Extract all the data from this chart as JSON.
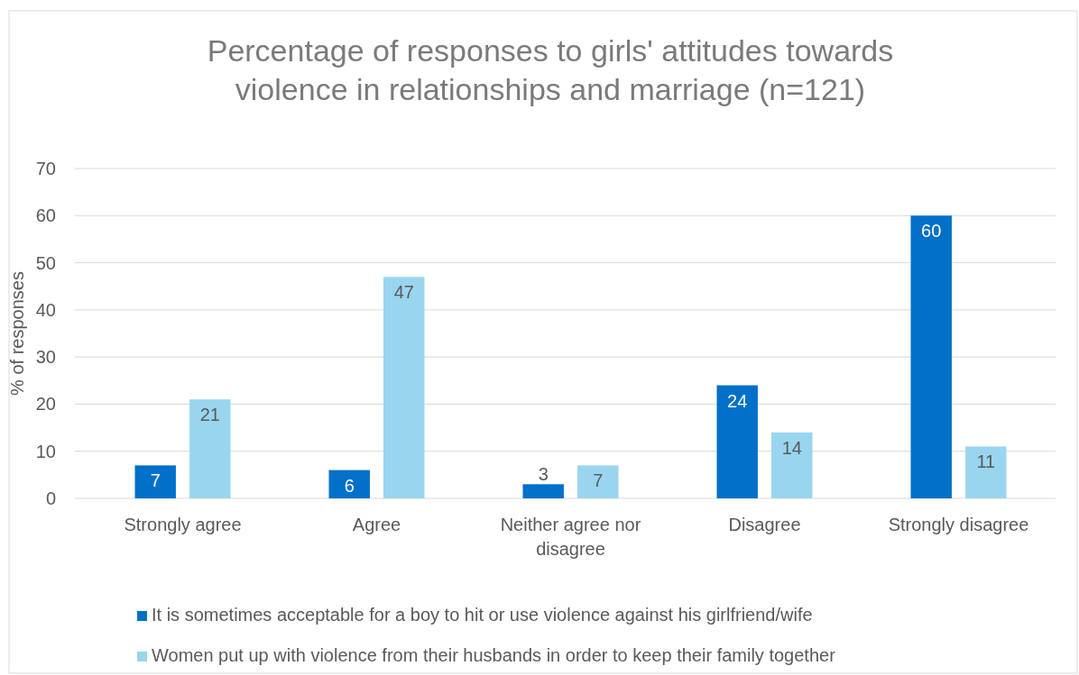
{
  "chart_data": {
    "type": "bar",
    "title": "Percentage of responses to girls' attitudes towards violence in relationships and marriage (n=121)",
    "ylabel": "% of responses",
    "categories": [
      "Strongly agree",
      "Agree",
      "Neither agree nor disagree",
      "Disagree",
      "Strongly disagree"
    ],
    "series": [
      {
        "name": "It is sometimes acceptable for a boy to hit or use violence against his girlfriend/wife",
        "color": "#0070c8",
        "values": [
          7,
          6,
          3,
          24,
          60
        ]
      },
      {
        "name": "Women put up with violence from their husbands in order to keep their family together",
        "color": "#99d5ef",
        "values": [
          21,
          47,
          7,
          14,
          11
        ]
      }
    ],
    "ylim": [
      0,
      70
    ],
    "yticks": [
      0,
      10,
      20,
      30,
      40,
      50,
      60,
      70
    ],
    "grid": "y",
    "legend": "bottom",
    "data_labels": true
  }
}
